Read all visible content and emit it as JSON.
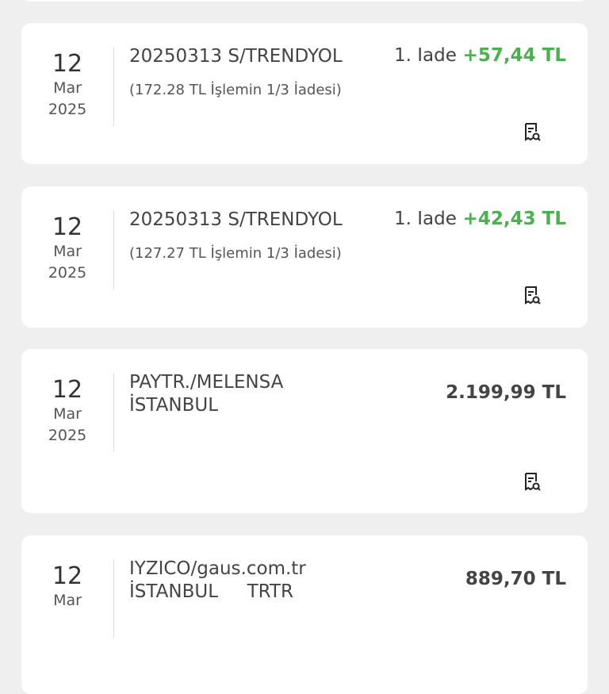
{
  "transactions": [
    {
      "day": "12",
      "month": "Mar",
      "year": "2025",
      "title": "20250313 S/TRENDYOL",
      "tag": "1. Iade",
      "amount": "+57,44 TL",
      "note": "(172.28 TL İşlemin 1/3 İadesi)"
    },
    {
      "day": "12",
      "month": "Mar",
      "year": "2025",
      "title": "20250313 S/TRENDYOL",
      "tag": "1. Iade",
      "amount": "+42,43 TL",
      "note": "(127.27 TL İşlemin 1/3 İadesi)"
    },
    {
      "day": "12",
      "month": "Mar",
      "year": "2025",
      "title": "PAYTR./MELENSA\nİSTANBUL",
      "amount": "2.199,99 TL"
    },
    {
      "day": "12",
      "month": "Mar",
      "title": "IYZICO/gaus.com.tr\nİSTANBUL     TRTR",
      "amount": "889,70 TL"
    }
  ]
}
